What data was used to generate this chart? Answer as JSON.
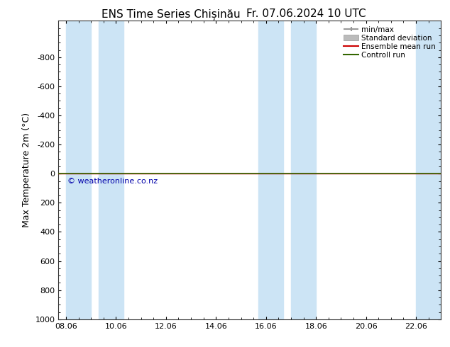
{
  "title_left": "ENS Time Series Chișinău",
  "title_right": "Fr. 07.06.2024 10 UTC",
  "ylabel": "Max Temperature 2m (°C)",
  "watermark": "© weatheronline.co.nz",
  "ylim_bottom": 1000,
  "ylim_top": -1050,
  "yticks": [
    -800,
    -600,
    -400,
    -200,
    0,
    200,
    400,
    600,
    800,
    1000
  ],
  "x_labels": [
    "08.06",
    "10.06",
    "12.06",
    "14.06",
    "16.06",
    "18.06",
    "20.06",
    "22.06"
  ],
  "x_positions": [
    0,
    2,
    4,
    6,
    8,
    10,
    12,
    14
  ],
  "xlim_min": -0.3,
  "xlim_max": 15.0,
  "shaded_regions": [
    [
      0.0,
      1.0
    ],
    [
      1.3,
      2.3
    ],
    [
      7.7,
      8.7
    ],
    [
      9.0,
      10.0
    ],
    [
      14.0,
      15.0
    ]
  ],
  "shade_color": "#cce4f5",
  "bg_color": "#ffffff",
  "spine_color": "#333333",
  "ensemble_mean_color": "#cc0000",
  "control_run_color": "#336600",
  "watermark_color": "#0000aa",
  "legend_gray_color": "#999999",
  "legend_lightgray_color": "#bbbbbb",
  "flat_value": 0,
  "title_fontsize": 11,
  "tick_fontsize": 8,
  "label_fontsize": 9,
  "watermark_fontsize": 8
}
